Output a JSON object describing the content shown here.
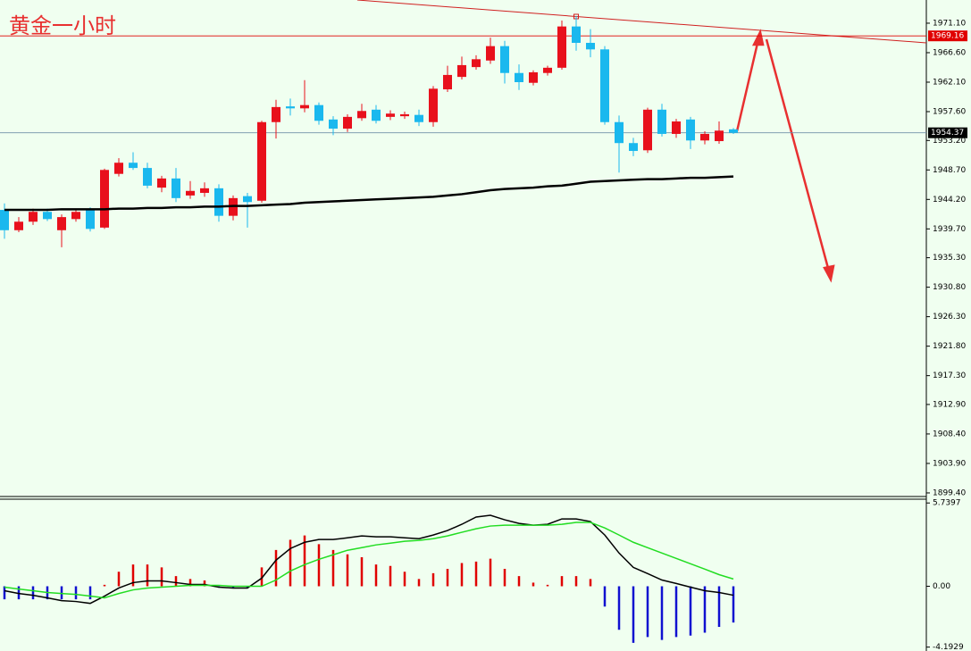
{
  "chart_data": [
    {
      "type": "candlestick",
      "title": "黄金一小时",
      "up_color": "#e8101c",
      "down_color": "#1ab8ee",
      "ohlc": [
        [
          1942.6,
          1943.6,
          1938.2,
          1939.5
        ],
        [
          1939.5,
          1941.5,
          1939.2,
          1940.8
        ],
        [
          1940.8,
          1942.8,
          1940.3,
          1942.3
        ],
        [
          1942.3,
          1942.8,
          1940.9,
          1941.2
        ],
        [
          1939.5,
          1941.9,
          1936.9,
          1941.5
        ],
        [
          1941.2,
          1942.8,
          1940.8,
          1942.3
        ],
        [
          1942.6,
          1943.0,
          1939.3,
          1939.7
        ],
        [
          1939.9,
          1948.9,
          1939.7,
          1948.7
        ],
        [
          1948.1,
          1950.5,
          1947.7,
          1949.8
        ],
        [
          1949.8,
          1951.4,
          1948.7,
          1949.0
        ],
        [
          1949.0,
          1949.8,
          1945.9,
          1946.3
        ],
        [
          1946.0,
          1947.8,
          1945.3,
          1947.4
        ],
        [
          1947.4,
          1949.0,
          1943.8,
          1944.4
        ],
        [
          1944.8,
          1947.0,
          1944.3,
          1945.5
        ],
        [
          1945.2,
          1946.8,
          1944.6,
          1945.9
        ],
        [
          1945.9,
          1946.5,
          1940.8,
          1941.7
        ],
        [
          1941.7,
          1944.8,
          1941.0,
          1944.4
        ],
        [
          1944.7,
          1945.2,
          1939.9,
          1943.8
        ],
        [
          1944.0,
          1956.2,
          1943.7,
          1956.0
        ],
        [
          1956.0,
          1959.4,
          1953.5,
          1958.3
        ],
        [
          1958.4,
          1959.6,
          1957.0,
          1958.1
        ],
        [
          1958.1,
          1962.4,
          1957.5,
          1958.6
        ],
        [
          1958.6,
          1959.0,
          1955.6,
          1956.2
        ],
        [
          1956.4,
          1956.9,
          1954.0,
          1955.0
        ],
        [
          1955.0,
          1957.2,
          1954.5,
          1956.8
        ],
        [
          1956.6,
          1958.8,
          1956.2,
          1957.7
        ],
        [
          1957.9,
          1958.6,
          1955.8,
          1956.2
        ],
        [
          1956.8,
          1957.8,
          1956.3,
          1957.3
        ],
        [
          1956.9,
          1957.6,
          1956.5,
          1957.2
        ],
        [
          1957.1,
          1957.9,
          1955.4,
          1956.0
        ],
        [
          1956.0,
          1961.5,
          1955.3,
          1961.1
        ],
        [
          1961.0,
          1964.6,
          1960.6,
          1963.2
        ],
        [
          1962.9,
          1966.0,
          1962.5,
          1964.7
        ],
        [
          1964.4,
          1966.2,
          1964.0,
          1965.6
        ],
        [
          1965.4,
          1968.9,
          1964.9,
          1967.6
        ],
        [
          1967.6,
          1968.4,
          1961.9,
          1963.5
        ],
        [
          1963.5,
          1964.8,
          1960.9,
          1962.1
        ],
        [
          1962.0,
          1963.9,
          1961.6,
          1963.6
        ],
        [
          1963.5,
          1964.6,
          1963.1,
          1964.3
        ],
        [
          1964.3,
          1971.5,
          1964.0,
          1970.6
        ],
        [
          1970.6,
          1972.2,
          1966.9,
          1968.1
        ],
        [
          1968.1,
          1970.2,
          1965.9,
          1967.1
        ],
        [
          1967.1,
          1967.6,
          1955.6,
          1956.0
        ],
        [
          1956.0,
          1957.0,
          1948.3,
          1952.8
        ],
        [
          1952.8,
          1953.6,
          1950.8,
          1951.6
        ],
        [
          1951.7,
          1958.2,
          1951.3,
          1957.9
        ],
        [
          1957.9,
          1958.8,
          1953.8,
          1954.2
        ],
        [
          1954.2,
          1956.5,
          1953.6,
          1956.1
        ],
        [
          1956.4,
          1956.8,
          1951.9,
          1953.2
        ],
        [
          1953.2,
          1954.6,
          1952.6,
          1954.2
        ],
        [
          1953.1,
          1956.1,
          1952.7,
          1954.7
        ],
        [
          1954.9,
          1955.1,
          1954.2,
          1954.37
        ]
      ],
      "ma": {
        "color": "#000000",
        "values": [
          1942.6,
          1942.6,
          1942.6,
          1942.6,
          1942.7,
          1942.7,
          1942.7,
          1942.7,
          1942.8,
          1942.8,
          1942.9,
          1942.9,
          1943.0,
          1943.0,
          1943.1,
          1943.1,
          1943.2,
          1943.2,
          1943.3,
          1943.4,
          1943.5,
          1943.7,
          1943.8,
          1943.9,
          1944.0,
          1944.1,
          1944.2,
          1944.3,
          1944.4,
          1944.5,
          1944.6,
          1944.8,
          1945.0,
          1945.3,
          1945.6,
          1945.8,
          1945.9,
          1946.0,
          1946.2,
          1946.3,
          1946.6,
          1946.9,
          1947.0,
          1947.1,
          1947.2,
          1947.3,
          1947.3,
          1947.4,
          1947.5,
          1947.5,
          1947.6,
          1947.7
        ]
      },
      "price_lines": [
        {
          "value": 1969.16,
          "color": "#e00000"
        },
        {
          "value": 1954.37,
          "color": "#000000"
        }
      ],
      "ylim": [
        1898.85,
        1974.64
      ],
      "yticks": [
        {
          "value": 1971.1,
          "label": "1971.10"
        },
        {
          "value": 1966.6,
          "label": "1966.60"
        },
        {
          "value": 1962.1,
          "label": "1962.10"
        },
        {
          "value": 1957.6,
          "label": "1957.60"
        },
        {
          "value": 1953.2,
          "label": "1953.20"
        },
        {
          "value": 1948.7,
          "label": "1948.70"
        },
        {
          "value": 1944.2,
          "label": "1944.20"
        },
        {
          "value": 1939.7,
          "label": "1939.70"
        },
        {
          "value": 1935.3,
          "label": "1935.30"
        },
        {
          "value": 1930.8,
          "label": "1930.80"
        },
        {
          "value": 1926.3,
          "label": "1926.30"
        },
        {
          "value": 1921.8,
          "label": "1921.80"
        },
        {
          "value": 1917.3,
          "label": "1917.30"
        },
        {
          "value": 1912.9,
          "label": "1912.90"
        },
        {
          "value": 1908.4,
          "label": "1908.40"
        },
        {
          "value": 1903.9,
          "label": "1903.90"
        },
        {
          "value": 1899.4,
          "label": "1899.40"
        }
      ]
    },
    {
      "type": "macd",
      "histogram": {
        "up_color": "#e00000",
        "down_color": "#1010d0",
        "values": [
          -0.9,
          -0.9,
          -0.9,
          -0.9,
          -0.9,
          -0.9,
          -0.9,
          0.1,
          1.0,
          1.5,
          1.5,
          1.3,
          0.7,
          0.5,
          0.4,
          -0.1,
          -0.1,
          -0.1,
          1.3,
          2.5,
          3.2,
          3.5,
          2.9,
          2.5,
          2.2,
          2.0,
          1.5,
          1.4,
          1.0,
          0.5,
          0.9,
          1.2,
          1.6,
          1.7,
          1.9,
          1.2,
          0.7,
          0.25,
          0.1,
          0.7,
          0.7,
          0.5,
          -1.4,
          -3.0,
          -3.9,
          -3.5,
          -3.7,
          -3.5,
          -3.4,
          -3.2,
          -2.8,
          -2.5
        ]
      },
      "series": [
        {
          "color": "#000000",
          "values": [
            -0.31,
            -0.5,
            -0.62,
            -0.8,
            -0.99,
            -1.05,
            -1.18,
            -0.68,
            -0.12,
            0.25,
            0.37,
            0.37,
            0.25,
            0.12,
            0.12,
            -0.06,
            -0.12,
            -0.12,
            0.56,
            1.8,
            2.6,
            3.03,
            3.22,
            3.22,
            3.34,
            3.47,
            3.41,
            3.41,
            3.34,
            3.28,
            3.53,
            3.84,
            4.27,
            4.77,
            4.89,
            4.58,
            4.33,
            4.21,
            4.27,
            4.64,
            4.64,
            4.46,
            3.53,
            2.29,
            1.3,
            0.87,
            0.43,
            0.19,
            -0.06,
            -0.31,
            -0.43,
            -0.62
          ]
        },
        {
          "color": "#22dd22",
          "values": [
            -0.06,
            -0.19,
            -0.31,
            -0.43,
            -0.5,
            -0.56,
            -0.68,
            -0.8,
            -0.5,
            -0.25,
            -0.12,
            -0.06,
            0,
            0.06,
            0.06,
            0.06,
            0,
            0,
            0,
            0.43,
            1.05,
            1.49,
            1.86,
            2.17,
            2.48,
            2.66,
            2.85,
            2.97,
            3.1,
            3.16,
            3.28,
            3.47,
            3.72,
            3.96,
            4.15,
            4.21,
            4.21,
            4.21,
            4.21,
            4.27,
            4.4,
            4.4,
            4.02,
            3.53,
            3.03,
            2.66,
            2.29,
            1.92,
            1.55,
            1.18,
            0.8,
            0.5
          ]
        }
      ],
      "ylim": [
        -4.4,
        6.0
      ],
      "yticks": [
        5.7397,
        {
          "value": 0,
          "label": "0.00"
        },
        -4.1929
      ]
    }
  ]
}
